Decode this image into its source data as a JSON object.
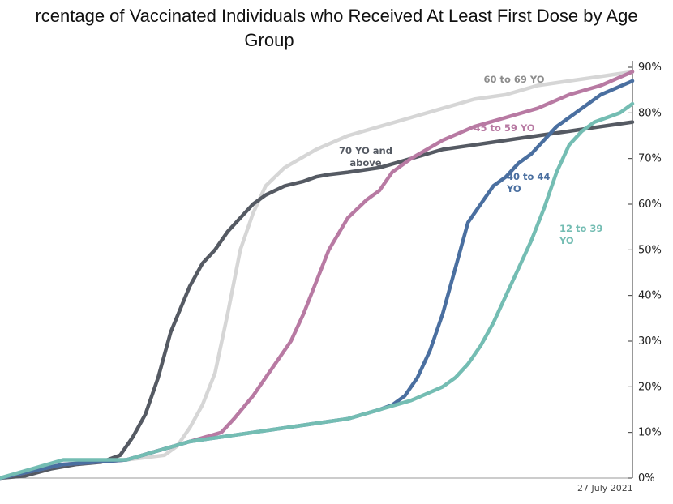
{
  "title_line1": "rcentage of Vaccinated Individuals who Received At Least First Dose by Age",
  "title_line2": "Group",
  "footnote": "27 July 2021",
  "chart_data": {
    "type": "line",
    "title": "rcentage of Vaccinated Individuals who Received At Least First Dose by Age Group",
    "xlabel": "",
    "ylabel": "",
    "ylim": [
      0,
      90
    ],
    "y_ticks": [
      "0%",
      "10%",
      "20%",
      "30%",
      "40%",
      "50%",
      "60%",
      "70%",
      "80%",
      "90%"
    ],
    "x_domain": [
      0,
      100
    ],
    "grid": false,
    "legend": "inline labels",
    "series": [
      {
        "name": "60 to 69 YO",
        "label_lines": [
          "60 to 69 YO"
        ],
        "color": "#d6d6d6",
        "label_color": "#8c8c8c",
        "x": [
          0,
          10,
          20,
          26,
          28,
          30,
          32,
          34,
          36,
          38,
          40,
          42,
          45,
          50,
          55,
          60,
          65,
          70,
          75,
          80,
          85,
          90,
          95,
          100
        ],
        "y": [
          0,
          3,
          4,
          5,
          7,
          11,
          16,
          23,
          36,
          50,
          58,
          64,
          68,
          72,
          75,
          77,
          79,
          81,
          83,
          84,
          86,
          87,
          88,
          89
        ]
      },
      {
        "name": "70 YO and above",
        "label_lines": [
          "70 YO and",
          "above"
        ],
        "color": "#555a63",
        "label_color": "#555a63",
        "x": [
          0,
          4,
          8,
          12,
          16,
          19,
          21,
          23,
          25,
          27,
          30,
          32,
          34,
          36,
          38,
          40,
          42,
          45,
          48,
          50,
          52,
          55,
          60,
          65,
          70,
          75,
          80,
          85,
          90,
          95,
          100
        ],
        "y": [
          0,
          0.5,
          2,
          3,
          3.5,
          5,
          9,
          14,
          22,
          32,
          42,
          47,
          50,
          54,
          57,
          60,
          62,
          64,
          65,
          66,
          66.5,
          67,
          68,
          70,
          72,
          73,
          74,
          75,
          76,
          77,
          78
        ]
      },
      {
        "name": "45 to 59 YO",
        "label_lines": [
          "45 to 59 YO"
        ],
        "color": "#b87aa3",
        "label_color": "#b87aa3",
        "x": [
          0,
          10,
          20,
          25,
          30,
          35,
          37,
          40,
          43,
          46,
          48,
          50,
          52,
          55,
          58,
          60,
          62,
          65,
          70,
          75,
          80,
          85,
          90,
          95,
          100
        ],
        "y": [
          0,
          3,
          4,
          6,
          8,
          10,
          13,
          18,
          24,
          30,
          36,
          43,
          50,
          57,
          61,
          63,
          67,
          70,
          74,
          77,
          79,
          81,
          84,
          86,
          89
        ]
      },
      {
        "name": "40 to 44 YO",
        "label_lines": [
          "40 to 44",
          "YO"
        ],
        "color": "#4a6fa0",
        "label_color": "#4a6fa0",
        "x": [
          0,
          10,
          20,
          30,
          40,
          50,
          55,
          60,
          62,
          64,
          66,
          68,
          70,
          72,
          74,
          76,
          78,
          80,
          82,
          84,
          86,
          88,
          90,
          92,
          95,
          100
        ],
        "y": [
          0,
          3,
          4,
          8,
          10,
          12,
          13,
          15,
          16,
          18,
          22,
          28,
          36,
          46,
          56,
          60,
          64,
          66,
          69,
          71,
          74,
          77,
          79,
          81,
          84,
          87
        ]
      },
      {
        "name": "12 to 39 YO",
        "label_lines": [
          "12 to 39",
          "YO"
        ],
        "color": "#74bdb3",
        "label_color": "#74bdb3",
        "x": [
          0,
          10,
          20,
          30,
          40,
          50,
          55,
          60,
          65,
          70,
          72,
          74,
          76,
          78,
          80,
          82,
          84,
          86,
          88,
          90,
          92,
          94,
          96,
          98,
          100
        ],
        "y": [
          0,
          4,
          4,
          8,
          10,
          12,
          13,
          15,
          17,
          20,
          22,
          25,
          29,
          34,
          40,
          46,
          52,
          59,
          67,
          73,
          76,
          78,
          79,
          80,
          82
        ]
      }
    ]
  }
}
